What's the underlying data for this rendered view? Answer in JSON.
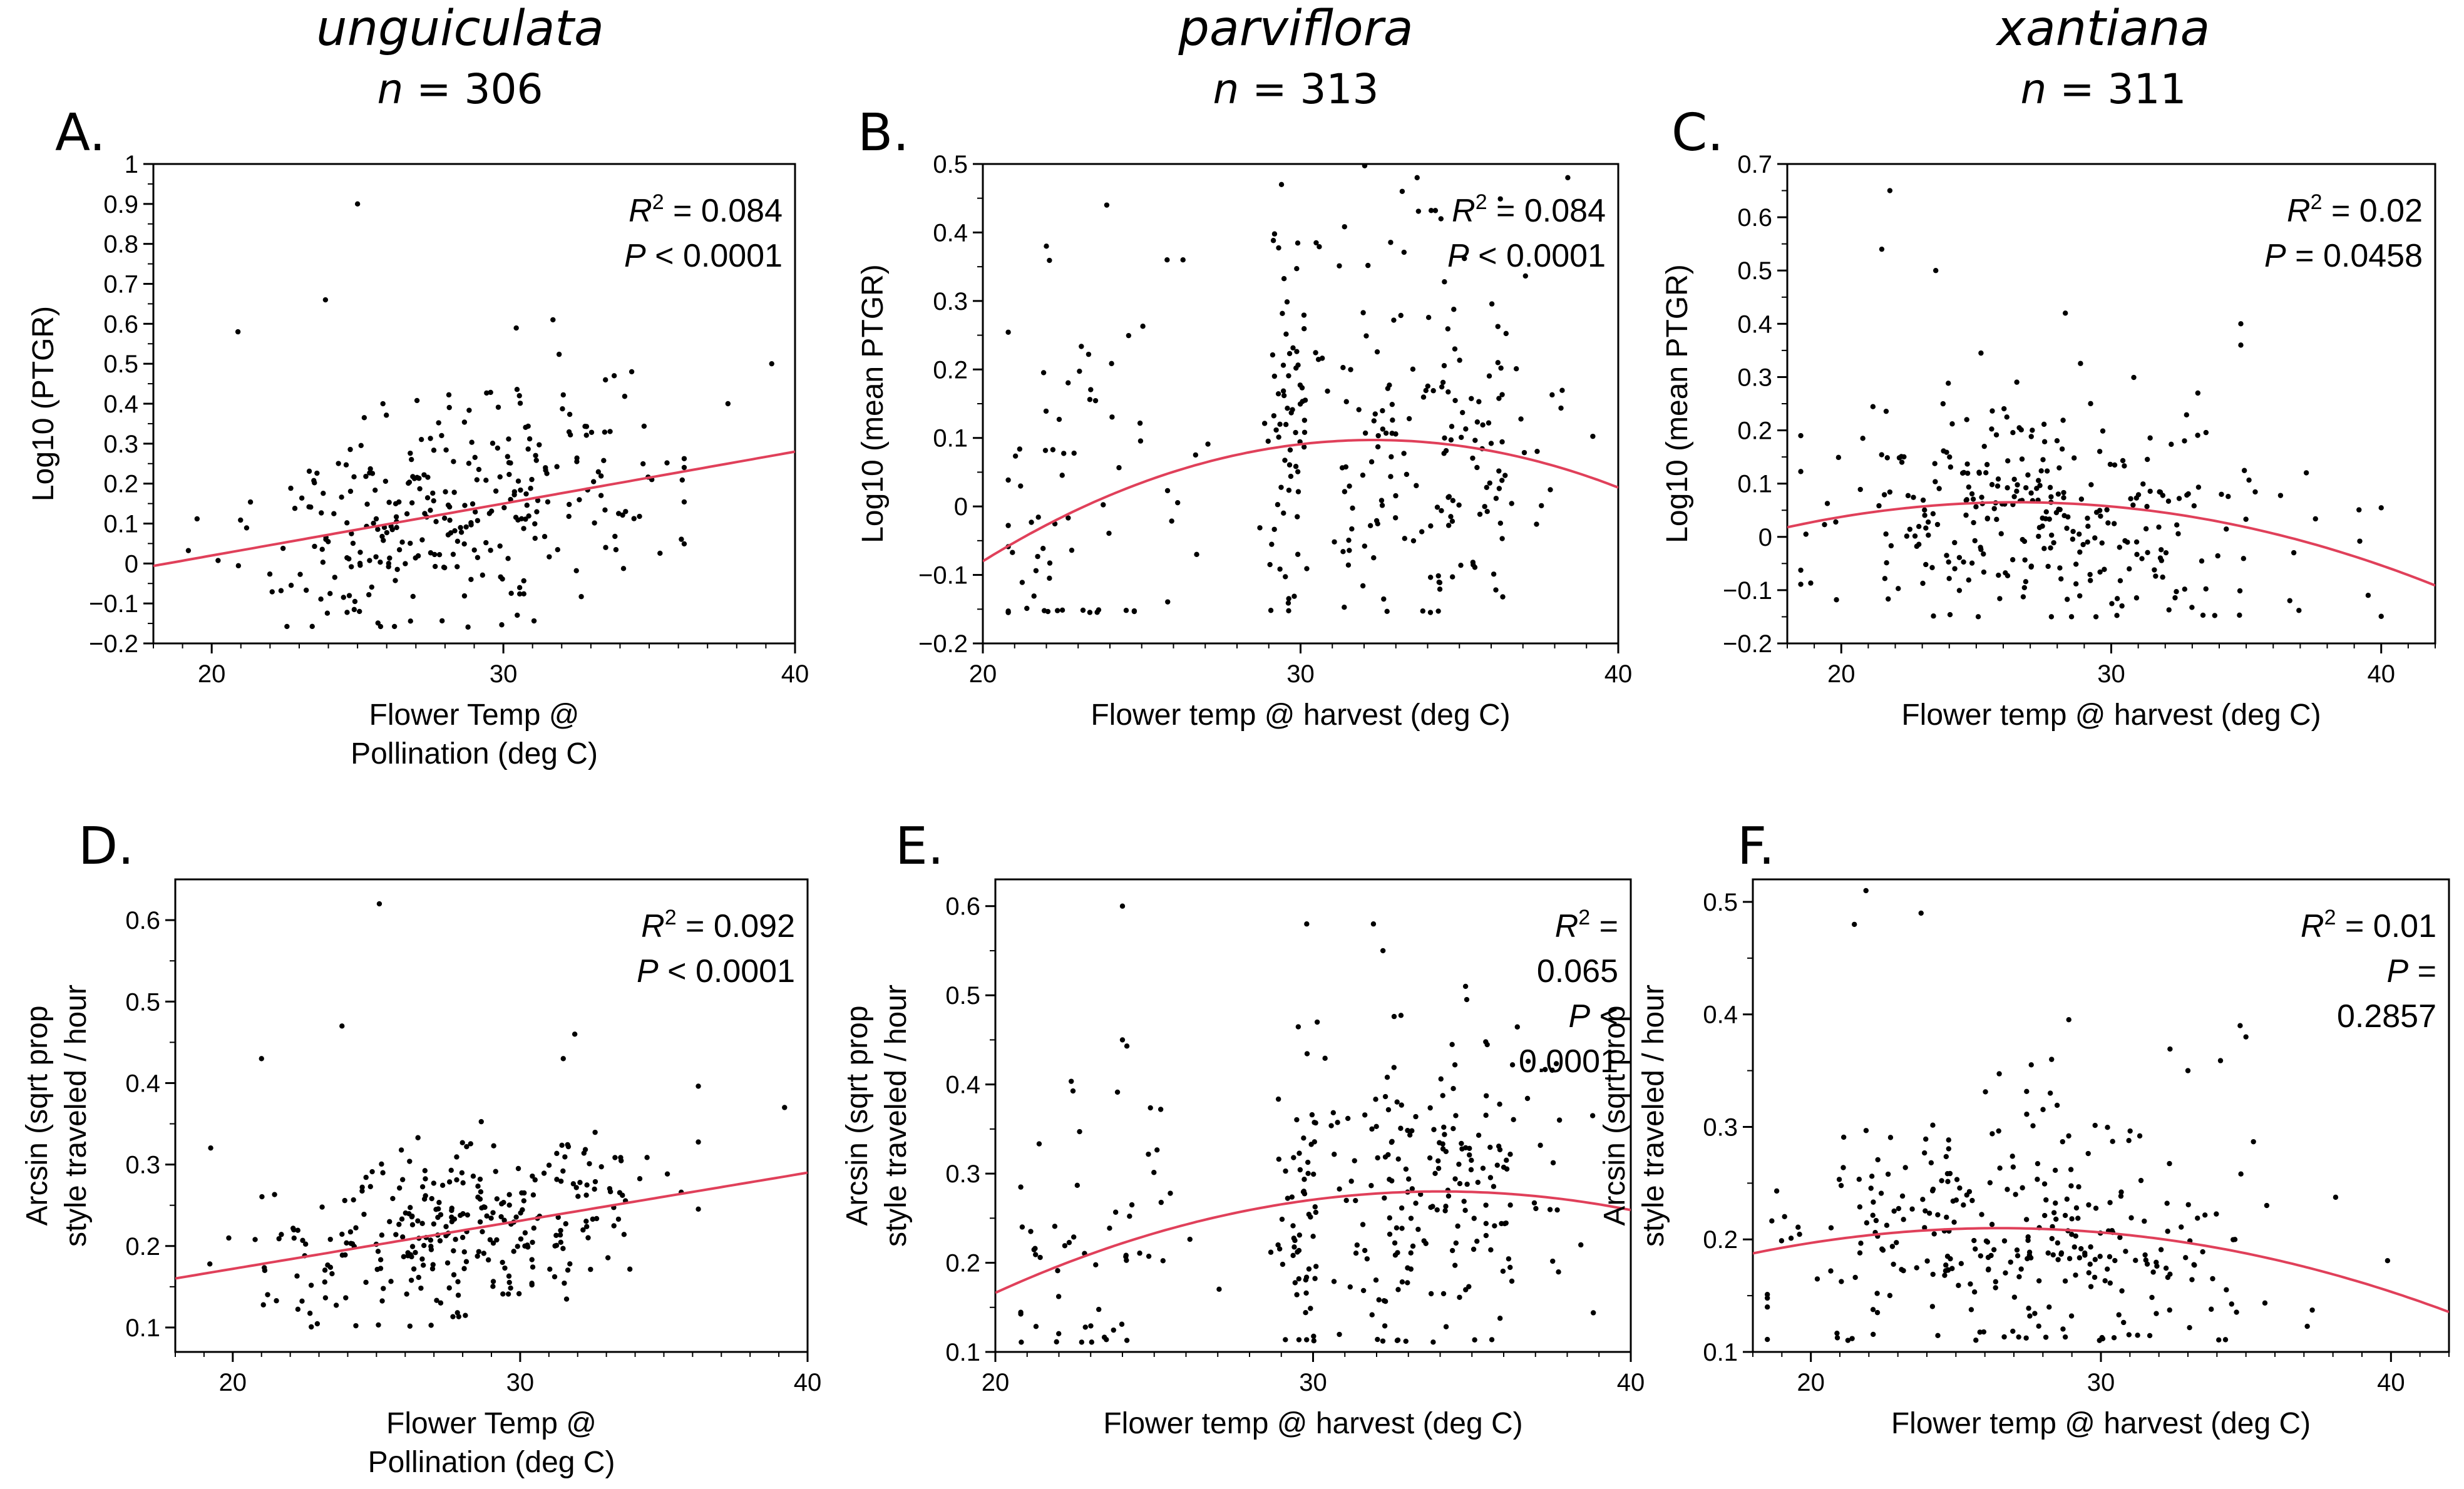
{
  "figure": {
    "column_titles": [
      {
        "species": "unguiculata",
        "n_label": "n",
        "n_text": " = 306"
      },
      {
        "species": "parviflora",
        "n_label": "n",
        "n_text": " = 313"
      },
      {
        "species": "xantiana",
        "n_label": "n",
        "n_text": " = 311"
      }
    ]
  },
  "chart_data": [
    {
      "panel": "A.",
      "type": "scatter",
      "xlabel": [
        "Flower Temp @",
        "Pollination (deg C)"
      ],
      "ylabel": [
        "Log10 (PTGR)"
      ],
      "xlim": [
        18,
        40
      ],
      "ylim": [
        -0.2,
        1.0
      ],
      "xticks": [
        20,
        30,
        40
      ],
      "xtick_labels": [
        "20",
        "30",
        "40"
      ],
      "yticks": [
        -0.2,
        -0.1,
        0,
        0.1,
        0.2,
        0.3,
        0.4,
        0.5,
        0.6,
        0.7,
        0.8,
        0.9,
        1.0
      ],
      "ytick_labels": [
        "−0.2",
        "−0.1",
        "0",
        "0.1",
        "0.2",
        "0.3",
        "0.4",
        "0.5",
        "0.6",
        "0.7",
        "0.8",
        "0.9",
        "1"
      ],
      "fit": {
        "form": "linear",
        "color": "#e0405a",
        "coef": [
          -0.24,
          0.013
        ]
      },
      "stats_lines": [
        {
          "italic": "R",
          "sup": "2",
          "rest": " = 0.084"
        },
        {
          "italic": "P",
          "sup": "",
          "rest": " < 0.0001"
        }
      ],
      "outliers": [
        [
          25.0,
          0.9
        ],
        [
          23.9,
          0.66
        ],
        [
          20.9,
          0.58
        ],
        [
          31.7,
          0.61
        ],
        [
          39.2,
          0.5
        ],
        [
          37.7,
          0.4
        ],
        [
          34.4,
          0.48
        ],
        [
          33.8,
          0.47
        ]
      ],
      "cloud": {
        "x_center": 28.2,
        "x_sd": 3.5,
        "x_range": [
          19.2,
          36.2
        ],
        "resid_sd": 0.13,
        "y_floor": -0.16,
        "count": 298,
        "seed": 11
      }
    },
    {
      "panel": "B.",
      "type": "scatter",
      "xlabel": [
        "Flower temp @ harvest (deg C)"
      ],
      "ylabel": [
        "Log10 (mean PTGR)"
      ],
      "xlim": [
        20,
        40
      ],
      "ylim": [
        -0.2,
        0.5
      ],
      "xticks": [
        20,
        30,
        40
      ],
      "xtick_labels": [
        "20",
        "30",
        "40"
      ],
      "yticks": [
        -0.2,
        -0.1,
        0,
        0.1,
        0.2,
        0.3,
        0.4,
        0.5
      ],
      "ytick_labels": [
        "−0.2",
        "−0.1",
        "0",
        "0.1",
        "0.2",
        "0.3",
        "0.4",
        "0.5"
      ],
      "fit": {
        "form": "quadratic",
        "color": "#e0405a",
        "vertex_x": 32.3,
        "peak_y": 0.097,
        "curvature": -0.00117
      },
      "stats_lines": [
        {
          "italic": "R",
          "sup": "2",
          "rest": " = 0.084"
        },
        {
          "italic": "P",
          "sup": "",
          "rest": " < 0.0001"
        }
      ],
      "outliers": [
        [
          23.9,
          0.44
        ],
        [
          22.0,
          0.38
        ],
        [
          29.4,
          0.47
        ],
        [
          33.2,
          0.46
        ],
        [
          25.8,
          0.36
        ],
        [
          26.3,
          0.36
        ]
      ],
      "cloud": {
        "clusters": [
          [
            21.8,
            0.9,
            30
          ],
          [
            24.5,
            1.1,
            30
          ],
          [
            29.6,
            0.35,
            60
          ],
          [
            31.2,
            0.6,
            30
          ],
          [
            32.5,
            0.45,
            50
          ],
          [
            34.3,
            0.5,
            55
          ],
          [
            35.8,
            0.5,
            35
          ],
          [
            37.4,
            0.8,
            17
          ]
        ],
        "resid_sd": 0.14,
        "y_floor": -0.155,
        "count": 307,
        "seed": 23
      }
    },
    {
      "panel": "C.",
      "type": "scatter",
      "xlabel": [
        "Flower temp @ harvest (deg C)"
      ],
      "ylabel": [
        "Log10 (mean PTGR)"
      ],
      "xlim": [
        18,
        42
      ],
      "ylim": [
        -0.2,
        0.7
      ],
      "xticks": [
        20,
        30,
        40
      ],
      "xtick_labels": [
        "20",
        "30",
        "40"
      ],
      "yticks": [
        -0.2,
        -0.1,
        0,
        0.1,
        0.2,
        0.3,
        0.4,
        0.5,
        0.6,
        0.7
      ],
      "ytick_labels": [
        "−0.2",
        "−0.1",
        "0",
        "0.1",
        "0.2",
        "0.3",
        "0.4",
        "0.5",
        "0.6",
        "0.7"
      ],
      "fit": {
        "form": "quadratic",
        "color": "#e0405a",
        "vertex_x": 26.5,
        "peak_y": 0.065,
        "curvature": -0.00065
      },
      "stats_lines": [
        {
          "italic": "R",
          "sup": "2",
          "rest": " = 0.02"
        },
        {
          "italic": "P",
          "sup": "",
          "rest": " = 0.0458"
        }
      ],
      "outliers": [
        [
          21.8,
          0.65
        ],
        [
          21.5,
          0.54
        ],
        [
          23.5,
          0.5
        ],
        [
          34.8,
          0.4
        ],
        [
          34.8,
          0.36
        ],
        [
          28.3,
          0.42
        ]
      ],
      "cloud": {
        "x_center": 27.6,
        "x_sd": 4.2,
        "x_range": [
          18.5,
          40.0
        ],
        "resid_sd": 0.11,
        "y_floor": -0.15,
        "count": 305,
        "seed": 37
      }
    },
    {
      "panel": "D.",
      "type": "scatter",
      "xlabel": [
        "Flower Temp @",
        "Pollination (deg C)"
      ],
      "ylabel": [
        "Arcsin (sqrt prop",
        "style traveled / hour"
      ],
      "xlim": [
        18,
        40
      ],
      "ylim": [
        0.07,
        0.65
      ],
      "xticks": [
        20,
        30,
        40
      ],
      "xtick_labels": [
        "20",
        "30",
        "40"
      ],
      "yticks": [
        0.1,
        0.2,
        0.3,
        0.4,
        0.5,
        0.6
      ],
      "ytick_labels": [
        "0.1",
        "0.2",
        "0.3",
        "0.4",
        "0.5",
        "0.6"
      ],
      "fit": {
        "form": "linear",
        "color": "#e0405a",
        "coef": [
          0.054,
          0.0059
        ]
      },
      "stats_lines": [
        {
          "italic": "R",
          "sup": "2",
          "rest": " = 0.092"
        },
        {
          "italic": "P",
          "sup": "",
          "rest": " < 0.0001"
        }
      ],
      "outliers": [
        [
          25.1,
          0.62
        ],
        [
          23.8,
          0.47
        ],
        [
          21.0,
          0.43
        ],
        [
          31.9,
          0.46
        ],
        [
          31.5,
          0.43
        ],
        [
          39.2,
          0.37
        ]
      ],
      "cloud": {
        "x_center": 28.2,
        "x_sd": 3.5,
        "x_range": [
          19.2,
          36.2
        ],
        "resid_sd": 0.055,
        "y_floor": 0.1,
        "count": 300,
        "seed": 41
      }
    },
    {
      "panel": "E.",
      "type": "scatter",
      "xlabel": [
        "Flower temp @ harvest (deg C)"
      ],
      "ylabel": [
        "Arcsin (sqrt prop",
        "style traveled / hour"
      ],
      "xlim": [
        20,
        40
      ],
      "ylim": [
        0.1,
        0.63
      ],
      "xticks": [
        20,
        30,
        40
      ],
      "xtick_labels": [
        "20",
        "30",
        "40"
      ],
      "yticks": [
        0.1,
        0.2,
        0.3,
        0.4,
        0.5,
        0.6
      ],
      "ytick_labels": [
        "0.1",
        "0.2",
        "0.3",
        "0.4",
        "0.5",
        "0.6"
      ],
      "fit": {
        "form": "quadratic",
        "color": "#e0405a",
        "vertex_x": 34.0,
        "peak_y": 0.28,
        "curvature": -0.00058
      },
      "stats_lines": [
        {
          "italic": "R",
          "sup": "2",
          "rest": " ="
        },
        {
          "italic": "",
          "sup": "",
          "rest": "0.065"
        },
        {
          "italic": "P",
          "sup": "",
          "rest": " <"
        },
        {
          "italic": "",
          "sup": "",
          "rest": "0.0001"
        }
      ],
      "outliers": [
        [
          24.0,
          0.6
        ],
        [
          29.8,
          0.58
        ],
        [
          31.9,
          0.58
        ],
        [
          32.2,
          0.55
        ],
        [
          34.8,
          0.51
        ],
        [
          24.0,
          0.45
        ]
      ],
      "cloud": {
        "clusters": [
          [
            21.8,
            0.9,
            30
          ],
          [
            24.5,
            1.1,
            30
          ],
          [
            29.6,
            0.35,
            60
          ],
          [
            31.2,
            0.6,
            30
          ],
          [
            32.5,
            0.45,
            50
          ],
          [
            34.3,
            0.5,
            55
          ],
          [
            35.8,
            0.5,
            35
          ],
          [
            37.4,
            0.8,
            17
          ]
        ],
        "resid_sd": 0.095,
        "y_floor": 0.11,
        "count": 307,
        "seed": 53
      }
    },
    {
      "panel": "F.",
      "type": "scatter",
      "xlabel": [
        "Flower temp @ harvest (deg C)"
      ],
      "ylabel": [
        "Arcsin (sqrt prop",
        "style traveled / hour"
      ],
      "xlim": [
        18,
        42
      ],
      "ylim": [
        0.1,
        0.52
      ],
      "xticks": [
        20,
        30,
        40
      ],
      "xtick_labels": [
        "20",
        "30",
        "40"
      ],
      "yticks": [
        0.1,
        0.2,
        0.3,
        0.4,
        0.5
      ],
      "ytick_labels": [
        "0.1",
        "0.2",
        "0.3",
        "0.4",
        "0.5"
      ],
      "fit": {
        "form": "quadratic",
        "color": "#e0405a",
        "vertex_x": 26.5,
        "peak_y": 0.21,
        "curvature": -0.00031
      },
      "stats_lines": [
        {
          "italic": "R",
          "sup": "2",
          "rest": " = 0.01"
        },
        {
          "italic": "P",
          "sup": "",
          "rest": " ="
        },
        {
          "italic": "",
          "sup": "",
          "rest": "0.2857"
        }
      ],
      "outliers": [
        [
          21.9,
          0.51
        ],
        [
          21.5,
          0.48
        ],
        [
          23.8,
          0.49
        ],
        [
          34.8,
          0.39
        ],
        [
          35.0,
          0.38
        ],
        [
          33.0,
          0.35
        ],
        [
          28.3,
          0.36
        ]
      ],
      "cloud": {
        "x_center": 27.6,
        "x_sd": 4.2,
        "x_range": [
          18.5,
          40.0
        ],
        "resid_sd": 0.055,
        "y_floor": 0.11,
        "count": 304,
        "seed": 71
      }
    }
  ]
}
